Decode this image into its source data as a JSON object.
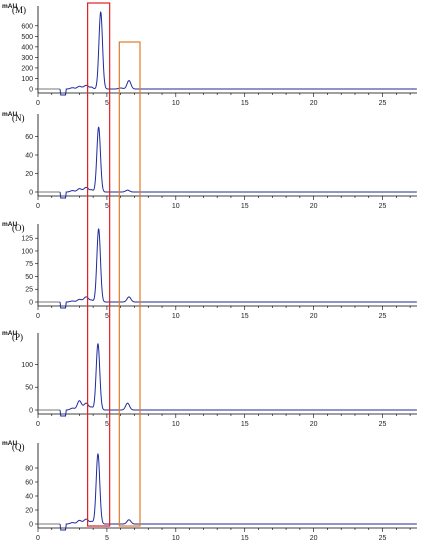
{
  "chart_data": [
    {
      "type": "line",
      "panel_label": "(M)",
      "ylabel": "mAU",
      "ylim": [
        -50,
        750
      ],
      "yticks": [
        0,
        100,
        200,
        300,
        400,
        500,
        600
      ],
      "xlim": [
        0,
        27.5
      ],
      "xticks": [
        0,
        5,
        10,
        15,
        20,
        25
      ],
      "baseline_gap": [
        1.6,
        2.0
      ],
      "peaks": [
        {
          "x": 2.5,
          "height": 12,
          "width": 0.15
        },
        {
          "x": 3.0,
          "height": 25,
          "width": 0.15
        },
        {
          "x": 3.5,
          "height": 35,
          "width": 0.18
        },
        {
          "x": 3.9,
          "height": 15,
          "width": 0.1
        },
        {
          "x": 4.55,
          "height": 730,
          "width": 0.13
        },
        {
          "x": 6.0,
          "height": 10,
          "width": 0.15
        },
        {
          "x": 6.6,
          "height": 80,
          "width": 0.14
        }
      ]
    },
    {
      "type": "line",
      "panel_label": "(N)",
      "ylabel": "mAU",
      "ylim": [
        -5,
        80
      ],
      "yticks": [
        0,
        20,
        40,
        60
      ],
      "xlim": [
        0,
        27.5
      ],
      "xticks": [
        0,
        5,
        10,
        15,
        20,
        25
      ],
      "baseline_gap": [
        1.6,
        2.0
      ],
      "peaks": [
        {
          "x": 2.5,
          "height": 1.5,
          "width": 0.15
        },
        {
          "x": 3.0,
          "height": 3.5,
          "width": 0.15
        },
        {
          "x": 3.5,
          "height": 5,
          "width": 0.18
        },
        {
          "x": 3.9,
          "height": 2,
          "width": 0.1
        },
        {
          "x": 4.4,
          "height": 70,
          "width": 0.13
        },
        {
          "x": 6.5,
          "height": 2,
          "width": 0.14
        }
      ]
    },
    {
      "type": "line",
      "panel_label": "(O)",
      "ylabel": "mAU",
      "ylim": [
        -10,
        145
      ],
      "yticks": [
        0,
        25,
        50,
        75,
        100,
        125
      ],
      "xlim": [
        0,
        27.5
      ],
      "xticks": [
        0,
        5,
        10,
        15,
        20,
        25
      ],
      "baseline_gap": [
        1.6,
        2.0
      ],
      "peaks": [
        {
          "x": 2.5,
          "height": 2,
          "width": 0.15
        },
        {
          "x": 3.0,
          "height": 5,
          "width": 0.15
        },
        {
          "x": 3.5,
          "height": 10,
          "width": 0.18
        },
        {
          "x": 3.9,
          "height": 3,
          "width": 0.1
        },
        {
          "x": 4.4,
          "height": 143,
          "width": 0.13
        },
        {
          "x": 6.6,
          "height": 10,
          "width": 0.14
        }
      ]
    },
    {
      "type": "line",
      "panel_label": "(P)",
      "ylabel": "mAU",
      "ylim": [
        -15,
        160
      ],
      "yticks": [
        0,
        50,
        100
      ],
      "xlim": [
        0,
        27.5
      ],
      "xticks": [
        0,
        5,
        10,
        15,
        20,
        25
      ],
      "baseline_gap": [
        1.6,
        2.0
      ],
      "peaks": [
        {
          "x": 2.5,
          "height": 4,
          "width": 0.15
        },
        {
          "x": 3.0,
          "height": 20,
          "width": 0.15
        },
        {
          "x": 3.5,
          "height": 15,
          "width": 0.18
        },
        {
          "x": 3.9,
          "height": 5,
          "width": 0.1
        },
        {
          "x": 4.35,
          "height": 145,
          "width": 0.13
        },
        {
          "x": 6.5,
          "height": 15,
          "width": 0.14
        }
      ]
    },
    {
      "type": "line",
      "panel_label": "(Q)",
      "ylabel": "mAU",
      "ylim": [
        -8,
        110
      ],
      "yticks": [
        0,
        20,
        40,
        60,
        80
      ],
      "xlim": [
        0,
        27.5
      ],
      "xticks": [
        0,
        5,
        10,
        15,
        20,
        25
      ],
      "baseline_gap": [
        1.6,
        2.0
      ],
      "peaks": [
        {
          "x": 2.5,
          "height": 2,
          "width": 0.15
        },
        {
          "x": 3.0,
          "height": 5,
          "width": 0.15
        },
        {
          "x": 3.5,
          "height": 7,
          "width": 0.18
        },
        {
          "x": 3.9,
          "height": 3,
          "width": 0.1
        },
        {
          "x": 4.35,
          "height": 100,
          "width": 0.13
        },
        {
          "x": 6.6,
          "height": 6,
          "width": 0.14
        }
      ]
    }
  ],
  "highlight_boxes": [
    {
      "color": "#e02020",
      "x_range": [
        3.6,
        5.2
      ]
    },
    {
      "color": "#e07a2a",
      "x_range": [
        5.9,
        7.4
      ]
    }
  ],
  "colors": {
    "trace": "#1f2a9c",
    "baseline_gray": "#777777",
    "axis": "#000000"
  }
}
